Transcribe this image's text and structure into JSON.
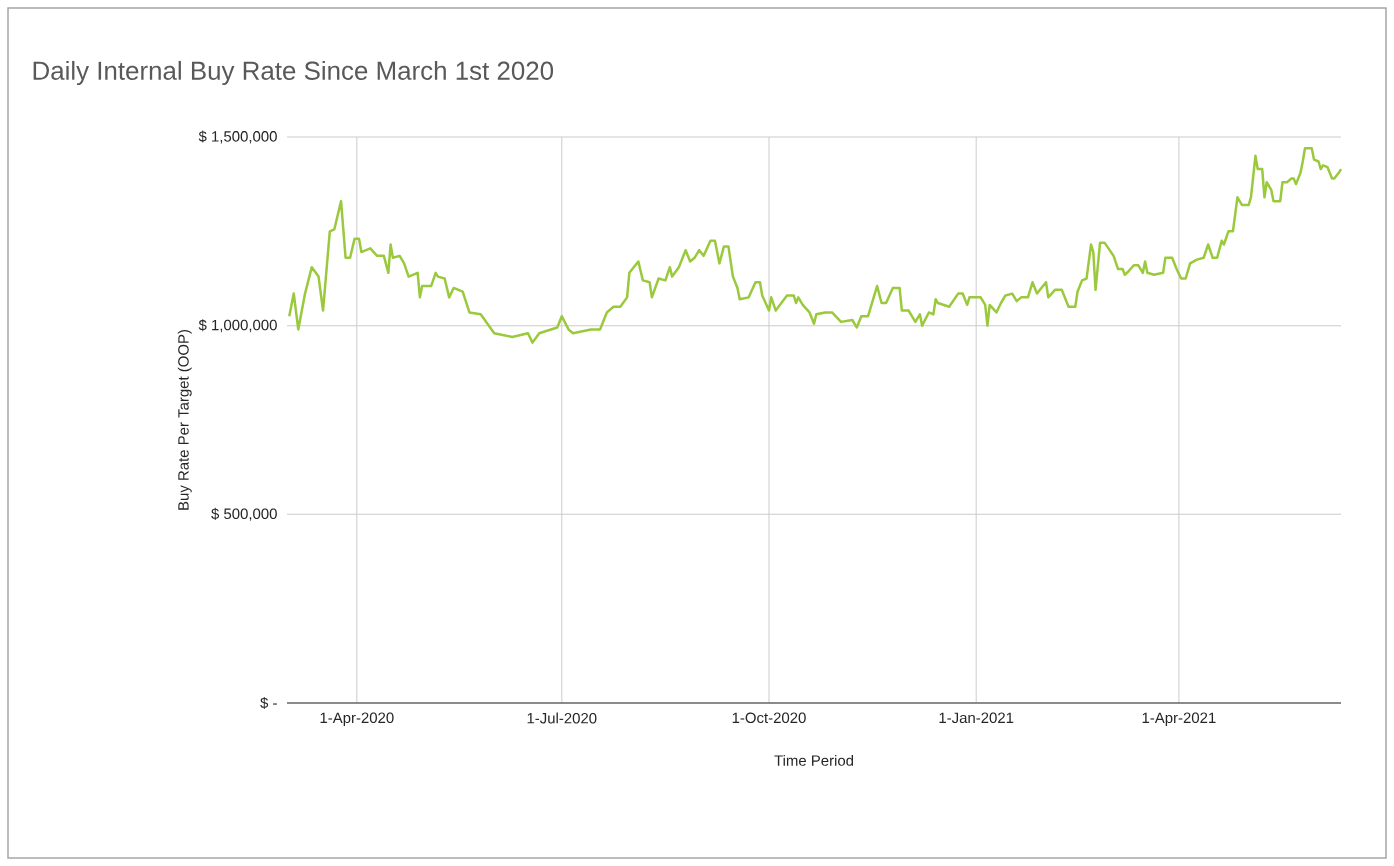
{
  "chart_data": {
    "type": "line",
    "title": "Daily Internal Buy Rate Since March 1st 2020",
    "xlabel": "Time Period",
    "ylabel": "Buy Rate Per Target (OOP)",
    "color": "#9bc93e",
    "grid": true,
    "xlim": [
      "2020-03-01",
      "2021-06-12"
    ],
    "ylim": [
      0,
      1500000
    ],
    "xticks": [
      {
        "value": "2020-04-01",
        "label": "1-Apr-2020"
      },
      {
        "value": "2020-07-01",
        "label": "1-Jul-2020"
      },
      {
        "value": "2020-10-01",
        "label": "1-Oct-2020"
      },
      {
        "value": "2021-01-01",
        "label": "1-Jan-2021"
      },
      {
        "value": "2021-04-01",
        "label": "1-Apr-2021"
      }
    ],
    "yticks": [
      {
        "value": 0,
        "label": "$ -"
      },
      {
        "value": 500000,
        "label": "$ 500,000"
      },
      {
        "value": 1000000,
        "label": "$ 1,000,000"
      },
      {
        "value": 1500000,
        "label": "$ 1,500,000"
      }
    ],
    "x": [
      "2020-03-02",
      "2020-03-04",
      "2020-03-06",
      "2020-03-09",
      "2020-03-12",
      "2020-03-15",
      "2020-03-17",
      "2020-03-19",
      "2020-03-20",
      "2020-03-22",
      "2020-03-25",
      "2020-03-27",
      "2020-03-29",
      "2020-03-31",
      "2020-04-02",
      "2020-04-03",
      "2020-04-07",
      "2020-04-10",
      "2020-04-13",
      "2020-04-15",
      "2020-04-16",
      "2020-04-17",
      "2020-04-20",
      "2020-04-22",
      "2020-04-24",
      "2020-04-28",
      "2020-04-29",
      "2020-04-30",
      "2020-05-04",
      "2020-05-06",
      "2020-05-07",
      "2020-05-10",
      "2020-05-12",
      "2020-05-14",
      "2020-05-18",
      "2020-05-21",
      "2020-05-26",
      "2020-06-01",
      "2020-06-09",
      "2020-06-16",
      "2020-06-18",
      "2020-06-21",
      "2020-06-29",
      "2020-07-01",
      "2020-07-04",
      "2020-07-06",
      "2020-07-14",
      "2020-07-18",
      "2020-07-21",
      "2020-07-24",
      "2020-07-27",
      "2020-07-30",
      "2020-07-31",
      "2020-08-04",
      "2020-08-06",
      "2020-08-09",
      "2020-08-10",
      "2020-08-13",
      "2020-08-16",
      "2020-08-18",
      "2020-08-19",
      "2020-08-22",
      "2020-08-25",
      "2020-08-27",
      "2020-08-29",
      "2020-08-31",
      "2020-09-02",
      "2020-09-05",
      "2020-09-07",
      "2020-09-09",
      "2020-09-11",
      "2020-09-13",
      "2020-09-15",
      "2020-09-17",
      "2020-09-18",
      "2020-09-22",
      "2020-09-25",
      "2020-09-27",
      "2020-09-28",
      "2020-10-01",
      "2020-10-02",
      "2020-10-04",
      "2020-10-09",
      "2020-10-12",
      "2020-10-13",
      "2020-10-14",
      "2020-10-16",
      "2020-10-19",
      "2020-10-21",
      "2020-10-22",
      "2020-10-26",
      "2020-10-29",
      "2020-11-02",
      "2020-11-07",
      "2020-11-09",
      "2020-11-11",
      "2020-11-14",
      "2020-11-16",
      "2020-11-18",
      "2020-11-20",
      "2020-11-22",
      "2020-11-25",
      "2020-11-28",
      "2020-11-29",
      "2020-12-02",
      "2020-12-05",
      "2020-12-07",
      "2020-12-08",
      "2020-12-11",
      "2020-12-13",
      "2020-12-14",
      "2020-12-15",
      "2020-12-20",
      "2020-12-24",
      "2020-12-26",
      "2020-12-28",
      "2020-12-29",
      "2021-01-03",
      "2021-01-05",
      "2021-01-06",
      "2021-01-07",
      "2021-01-10",
      "2021-01-12",
      "2021-01-14",
      "2021-01-17",
      "2021-01-19",
      "2021-01-21",
      "2021-01-24",
      "2021-01-26",
      "2021-01-28",
      "2021-02-01",
      "2021-02-02",
      "2021-02-05",
      "2021-02-08",
      "2021-02-11",
      "2021-02-14",
      "2021-02-15",
      "2021-02-17",
      "2021-02-19",
      "2021-02-21",
      "2021-02-22",
      "2021-02-23",
      "2021-02-25",
      "2021-02-27",
      "2021-03-03",
      "2021-03-05",
      "2021-03-07",
      "2021-03-08",
      "2021-03-09",
      "2021-03-12",
      "2021-03-14",
      "2021-03-16",
      "2021-03-17",
      "2021-03-18",
      "2021-03-21",
      "2021-03-25",
      "2021-03-26",
      "2021-03-29",
      "2021-03-31",
      "2021-04-02",
      "2021-04-04",
      "2021-04-06",
      "2021-04-09",
      "2021-04-12",
      "2021-04-14",
      "2021-04-16",
      "2021-04-18",
      "2021-04-20",
      "2021-04-21",
      "2021-04-23",
      "2021-04-25",
      "2021-04-27",
      "2021-04-29",
      "2021-05-02",
      "2021-05-03",
      "2021-05-05",
      "2021-05-06",
      "2021-05-08",
      "2021-05-09",
      "2021-05-10",
      "2021-05-12",
      "2021-05-13",
      "2021-05-16",
      "2021-05-17",
      "2021-05-19",
      "2021-05-21",
      "2021-05-22",
      "2021-05-23",
      "2021-05-25",
      "2021-05-26",
      "2021-05-27",
      "2021-05-30",
      "2021-05-31",
      "2021-06-02",
      "2021-06-03",
      "2021-06-04",
      "2021-06-06",
      "2021-06-08",
      "2021-06-09",
      "2021-06-11",
      "2021-06-12"
    ],
    "values": [
      1025000,
      1085000,
      990000,
      1085000,
      1155000,
      1130000,
      1040000,
      1180000,
      1250000,
      1255000,
      1330000,
      1180000,
      1180000,
      1230000,
      1230000,
      1195000,
      1205000,
      1185000,
      1185000,
      1140000,
      1215000,
      1180000,
      1185000,
      1165000,
      1130000,
      1140000,
      1075000,
      1105000,
      1105000,
      1140000,
      1130000,
      1125000,
      1075000,
      1100000,
      1090000,
      1035000,
      1030000,
      980000,
      970000,
      980000,
      955000,
      980000,
      995000,
      1025000,
      990000,
      980000,
      990000,
      990000,
      1035000,
      1050000,
      1050000,
      1075000,
      1140000,
      1170000,
      1120000,
      1115000,
      1075000,
      1125000,
      1120000,
      1155000,
      1130000,
      1155000,
      1200000,
      1170000,
      1180000,
      1200000,
      1185000,
      1225000,
      1225000,
      1165000,
      1210000,
      1210000,
      1130000,
      1100000,
      1070000,
      1075000,
      1115000,
      1115000,
      1080000,
      1040000,
      1075000,
      1040000,
      1080000,
      1080000,
      1060000,
      1075000,
      1055000,
      1035000,
      1005000,
      1030000,
      1035000,
      1035000,
      1010000,
      1015000,
      995000,
      1025000,
      1025000,
      1065000,
      1105000,
      1060000,
      1060000,
      1100000,
      1100000,
      1040000,
      1040000,
      1010000,
      1030000,
      1000000,
      1035000,
      1030000,
      1070000,
      1060000,
      1050000,
      1085000,
      1085000,
      1055000,
      1075000,
      1075000,
      1055000,
      1000000,
      1055000,
      1035000,
      1060000,
      1080000,
      1085000,
      1065000,
      1075000,
      1075000,
      1115000,
      1085000,
      1115000,
      1075000,
      1095000,
      1095000,
      1050000,
      1050000,
      1090000,
      1120000,
      1125000,
      1215000,
      1195000,
      1095000,
      1220000,
      1220000,
      1185000,
      1150000,
      1150000,
      1135000,
      1140000,
      1160000,
      1160000,
      1140000,
      1170000,
      1140000,
      1135000,
      1140000,
      1180000,
      1180000,
      1150000,
      1125000,
      1125000,
      1165000,
      1175000,
      1180000,
      1215000,
      1180000,
      1180000,
      1225000,
      1215000,
      1250000,
      1250000,
      1340000,
      1320000,
      1320000,
      1340000,
      1450000,
      1415000,
      1415000,
      1340000,
      1380000,
      1360000,
      1330000,
      1330000,
      1380000,
      1380000,
      1390000,
      1390000,
      1375000,
      1405000,
      1435000,
      1470000,
      1470000,
      1440000,
      1435000,
      1415000,
      1425000,
      1420000,
      1390000,
      1390000,
      1405000,
      1415000
    ]
  }
}
